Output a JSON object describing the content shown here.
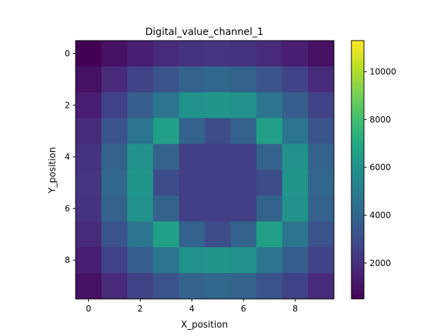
{
  "chart_data": {
    "type": "heatmap",
    "title": "Digital_value_channel_1",
    "xlabel": "X_position",
    "ylabel": "Y_position",
    "x": [
      0,
      1,
      2,
      3,
      4,
      5,
      6,
      7,
      8,
      9
    ],
    "y": [
      0,
      1,
      2,
      3,
      4,
      5,
      6,
      7,
      8,
      9
    ],
    "x_ticks": [
      "0",
      "2",
      "4",
      "6",
      "8"
    ],
    "y_ticks": [
      "0",
      "2",
      "4",
      "6",
      "8"
    ],
    "colormap": "viridis",
    "vmin": 500,
    "vmax": 11300,
    "colorbar_ticks": [
      "2000",
      "4000",
      "6000",
      "8000",
      "10000"
    ],
    "values": [
      [
        500,
        1000,
        1400,
        1800,
        2100,
        2200,
        2100,
        1800,
        1400,
        1000
      ],
      [
        1000,
        1800,
        2600,
        3300,
        3900,
        4100,
        3900,
        3300,
        2600,
        1800
      ],
      [
        1400,
        2600,
        3700,
        4700,
        5900,
        6100,
        5900,
        4700,
        3700,
        2600
      ],
      [
        1800,
        3300,
        4700,
        6600,
        3900,
        3000,
        3900,
        6600,
        4700,
        3300
      ],
      [
        2100,
        3900,
        5900,
        3900,
        2500,
        2500,
        2500,
        3900,
        5900,
        3900
      ],
      [
        2200,
        4100,
        6100,
        3000,
        2500,
        2500,
        2500,
        3000,
        6100,
        4100
      ],
      [
        2100,
        3900,
        5900,
        3900,
        2500,
        2500,
        2500,
        3900,
        5900,
        3900
      ],
      [
        1800,
        3300,
        4700,
        6600,
        3900,
        3000,
        3900,
        6600,
        4700,
        3300
      ],
      [
        1400,
        2600,
        3700,
        4700,
        5900,
        6100,
        5900,
        4700,
        3700,
        2600
      ],
      [
        1000,
        1800,
        2600,
        3300,
        3900,
        4100,
        3900,
        3300,
        2600,
        1800
      ]
    ]
  }
}
